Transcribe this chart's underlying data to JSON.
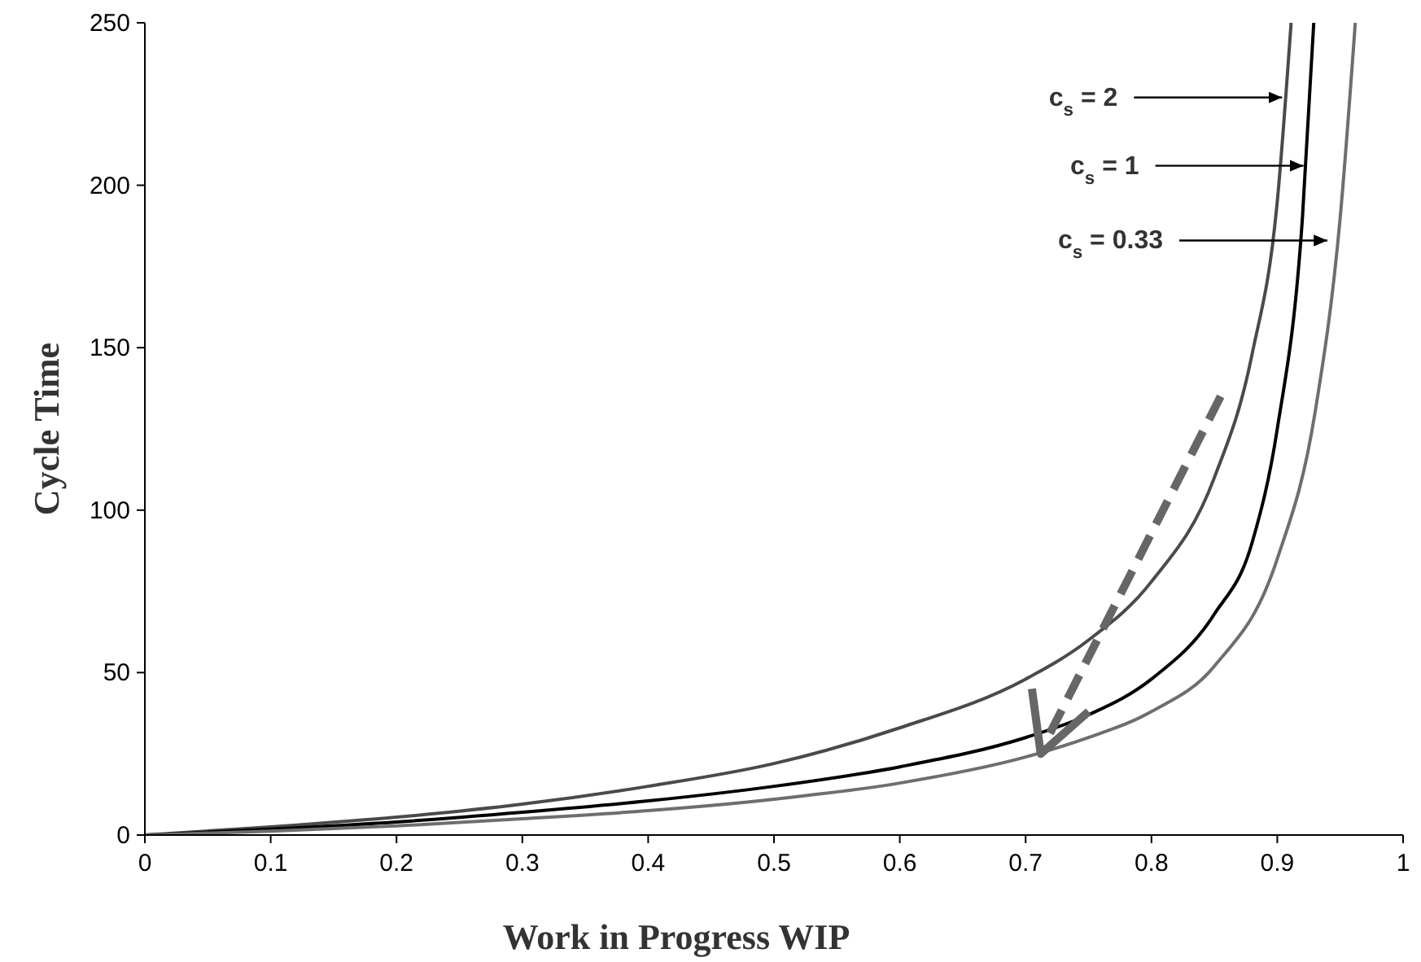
{
  "chart_data": {
    "type": "line",
    "xlabel": "Work in Progress WIP",
    "ylabel": "Cycle Time",
    "xlim": [
      0,
      1
    ],
    "ylim": [
      0,
      250
    ],
    "xticks": [
      0,
      0.1,
      0.2,
      0.3,
      0.4,
      0.5,
      0.6,
      0.7,
      0.8,
      0.9,
      1
    ],
    "yticks": [
      0,
      50,
      100,
      150,
      200,
      250
    ],
    "grid": false,
    "marker": "none",
    "line_style": "solid",
    "series": [
      {
        "color": "#4a4a4a",
        "x": [
          0,
          0.1,
          0.2,
          0.3,
          0.4,
          0.5,
          0.6,
          0.7,
          0.75,
          0.8,
          0.85,
          0.88,
          0.9,
          0.911
        ],
        "values": [
          0,
          2.5,
          5.5,
          9.5,
          15,
          22,
          33,
          48,
          60,
          78,
          110,
          148,
          195,
          250
        ]
      },
      {
        "color": "#000000",
        "x": [
          0,
          0.1,
          0.2,
          0.3,
          0.4,
          0.5,
          0.6,
          0.7,
          0.75,
          0.8,
          0.85,
          0.88,
          0.9,
          0.92,
          0.929
        ],
        "values": [
          0,
          1.8,
          4,
          7,
          10.5,
          15,
          21,
          30,
          37,
          48,
          68,
          90,
          125,
          190,
          250
        ]
      },
      {
        "color": "#6e6e6e",
        "x": [
          0,
          0.1,
          0.2,
          0.3,
          0.4,
          0.5,
          0.6,
          0.7,
          0.75,
          0.8,
          0.85,
          0.9,
          0.93,
          0.95,
          0.962
        ],
        "values": [
          0,
          1.2,
          2.8,
          5,
          7.5,
          11,
          16,
          24,
          30,
          38,
          52,
          85,
          130,
          190,
          250
        ]
      }
    ],
    "annotations": [
      {
        "text": "c$_{s}$ = 2",
        "x": 0.909,
        "y": 227
      },
      {
        "text": "c$_{s}$ = 1",
        "x": 0.926,
        "y": 206
      },
      {
        "text": "c$_{s}$ = 0.33",
        "x": 0.945,
        "y": 183
      }
    ]
  }
}
